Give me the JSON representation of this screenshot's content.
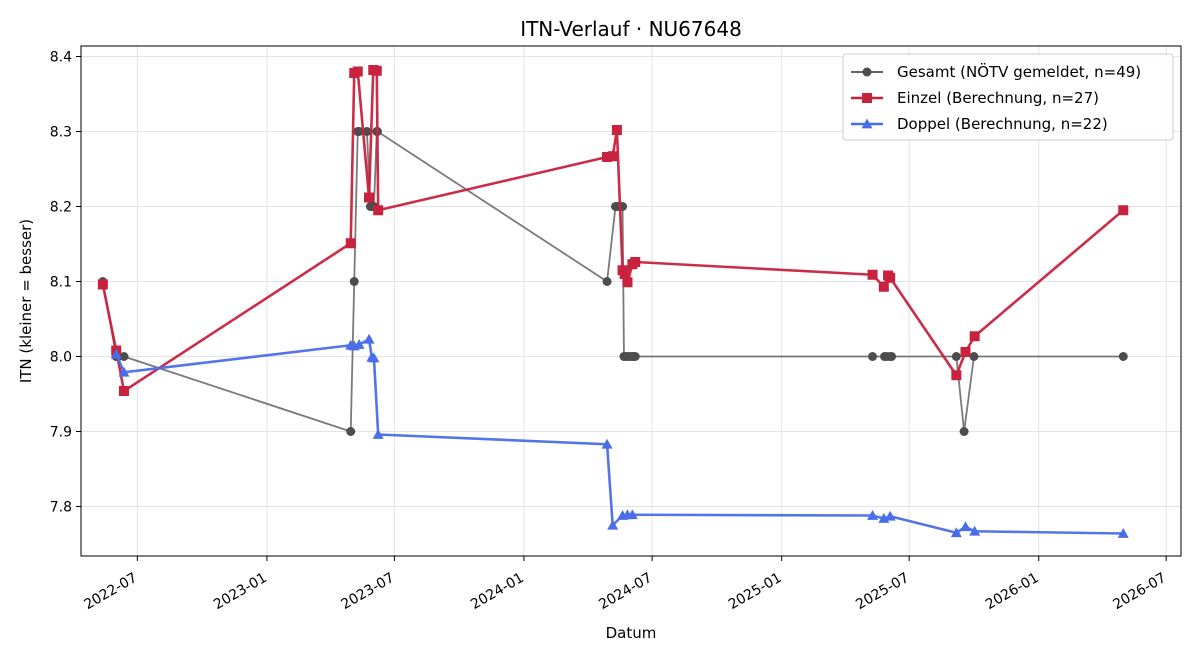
{
  "chart_data": {
    "type": "line",
    "title": "ITN-Verlauf · NU67648",
    "xlabel": "Datum",
    "ylabel": "ITN  (kleiner = besser)",
    "x_type": "date",
    "xlim": [
      "2022-04-12",
      "2026-07-22"
    ],
    "ylim": [
      7.734,
      8.414
    ],
    "x_ticks": [
      "2022-07-01",
      "2023-01-01",
      "2023-07-01",
      "2024-01-01",
      "2024-07-01",
      "2025-01-01",
      "2025-07-01",
      "2026-01-01",
      "2026-07-01"
    ],
    "x_tick_labels": [
      "2022-07",
      "2023-01",
      "2023-07",
      "2024-01",
      "2024-07",
      "2025-01",
      "2025-07",
      "2026-01",
      "2026-07"
    ],
    "y_ticks": [
      7.8,
      7.9,
      8.0,
      8.1,
      8.2,
      8.3,
      8.4
    ],
    "y_tick_labels": [
      "7.8",
      "7.9",
      "8.0",
      "8.1",
      "8.2",
      "8.3",
      "8.4"
    ],
    "grid": true,
    "legend_position": "top-right",
    "series": [
      {
        "name": "Gesamt (NÖTV gemeldet, n=49)",
        "color": "#4d4d4d",
        "marker": "circle",
        "points": [
          {
            "x": "2022-05-13",
            "y": 8.1
          },
          {
            "x": "2022-06-01",
            "y": 8.0
          },
          {
            "x": "2022-06-01",
            "y": 8.0
          },
          {
            "x": "2022-06-03",
            "y": 8.0
          },
          {
            "x": "2022-06-04",
            "y": 8.0
          },
          {
            "x": "2022-06-12",
            "y": 8.0
          },
          {
            "x": "2023-04-30",
            "y": 7.9
          },
          {
            "x": "2023-05-05",
            "y": 8.1
          },
          {
            "x": "2023-05-10",
            "y": 8.3
          },
          {
            "x": "2023-05-12",
            "y": 8.3
          },
          {
            "x": "2023-05-23",
            "y": 8.3
          },
          {
            "x": "2023-05-28",
            "y": 8.2
          },
          {
            "x": "2023-05-30",
            "y": 8.2
          },
          {
            "x": "2023-06-02",
            "y": 8.2
          },
          {
            "x": "2023-06-06",
            "y": 8.3
          },
          {
            "x": "2023-06-07",
            "y": 8.3
          },
          {
            "x": "2024-04-28",
            "y": 8.1
          },
          {
            "x": "2024-05-10",
            "y": 8.2
          },
          {
            "x": "2024-05-13",
            "y": 8.2
          },
          {
            "x": "2024-05-17",
            "y": 8.2
          },
          {
            "x": "2024-05-20",
            "y": 8.2
          },
          {
            "x": "2024-05-22",
            "y": 8.0
          },
          {
            "x": "2024-05-25",
            "y": 8.0
          },
          {
            "x": "2024-05-28",
            "y": 8.0
          },
          {
            "x": "2024-06-01",
            "y": 8.0
          },
          {
            "x": "2024-06-04",
            "y": 8.0
          },
          {
            "x": "2024-06-07",
            "y": 8.0
          },
          {
            "x": "2025-05-10",
            "y": 8.0
          },
          {
            "x": "2025-05-27",
            "y": 8.0
          },
          {
            "x": "2025-05-30",
            "y": 8.0
          },
          {
            "x": "2025-06-04",
            "y": 8.0
          },
          {
            "x": "2025-06-06",
            "y": 8.0
          },
          {
            "x": "2025-09-06",
            "y": 8.0
          },
          {
            "x": "2025-09-17",
            "y": 7.9
          },
          {
            "x": "2025-10-01",
            "y": 8.0
          },
          {
            "x": "2026-05-01",
            "y": 8.0
          }
        ]
      },
      {
        "name": "Einzel (Berechnung, n=27)",
        "color": "#c8223f",
        "marker": "square",
        "points": [
          {
            "x": "2022-05-13",
            "y": 8.096
          },
          {
            "x": "2022-06-01",
            "y": 8.008
          },
          {
            "x": "2022-06-12",
            "y": 7.954
          },
          {
            "x": "2023-04-30",
            "y": 8.151
          },
          {
            "x": "2023-05-05",
            "y": 8.378
          },
          {
            "x": "2023-05-10",
            "y": 8.38
          },
          {
            "x": "2023-05-26",
            "y": 8.212
          },
          {
            "x": "2023-06-01",
            "y": 8.382
          },
          {
            "x": "2023-06-06",
            "y": 8.381
          },
          {
            "x": "2023-06-08",
            "y": 8.195
          },
          {
            "x": "2024-04-28",
            "y": 8.266
          },
          {
            "x": "2024-05-06",
            "y": 8.267
          },
          {
            "x": "2024-05-12",
            "y": 8.302
          },
          {
            "x": "2024-05-20",
            "y": 8.115
          },
          {
            "x": "2024-05-23",
            "y": 8.11
          },
          {
            "x": "2024-05-27",
            "y": 8.099
          },
          {
            "x": "2024-06-03",
            "y": 8.123
          },
          {
            "x": "2024-06-07",
            "y": 8.126
          },
          {
            "x": "2025-05-10",
            "y": 8.109
          },
          {
            "x": "2025-05-26",
            "y": 8.093
          },
          {
            "x": "2025-06-01",
            "y": 8.108
          },
          {
            "x": "2025-06-04",
            "y": 8.105
          },
          {
            "x": "2025-09-06",
            "y": 7.975
          },
          {
            "x": "2025-09-19",
            "y": 8.006
          },
          {
            "x": "2025-10-02",
            "y": 8.027
          },
          {
            "x": "2026-05-01",
            "y": 8.195
          }
        ]
      },
      {
        "name": "Doppel (Berechnung, n=22)",
        "color": "#4a6ee8",
        "marker": "triangle",
        "points": [
          {
            "x": "2022-06-01",
            "y": 8.003
          },
          {
            "x": "2022-06-12",
            "y": 7.979
          },
          {
            "x": "2023-04-30",
            "y": 8.015
          },
          {
            "x": "2023-05-05",
            "y": 8.014
          },
          {
            "x": "2023-05-12",
            "y": 8.016
          },
          {
            "x": "2023-05-26",
            "y": 8.023
          },
          {
            "x": "2023-05-30",
            "y": 7.999
          },
          {
            "x": "2023-06-02",
            "y": 7.998
          },
          {
            "x": "2023-06-08",
            "y": 7.896
          },
          {
            "x": "2024-04-28",
            "y": 7.883
          },
          {
            "x": "2024-05-06",
            "y": 7.775
          },
          {
            "x": "2024-05-20",
            "y": 7.788
          },
          {
            "x": "2024-05-27",
            "y": 7.789
          },
          {
            "x": "2024-06-03",
            "y": 7.789
          },
          {
            "x": "2025-05-10",
            "y": 7.788
          },
          {
            "x": "2025-05-26",
            "y": 7.784
          },
          {
            "x": "2025-06-04",
            "y": 7.787
          },
          {
            "x": "2025-09-06",
            "y": 7.765
          },
          {
            "x": "2025-09-19",
            "y": 7.773
          },
          {
            "x": "2025-10-02",
            "y": 7.767
          },
          {
            "x": "2026-05-01",
            "y": 7.764
          }
        ]
      }
    ]
  }
}
